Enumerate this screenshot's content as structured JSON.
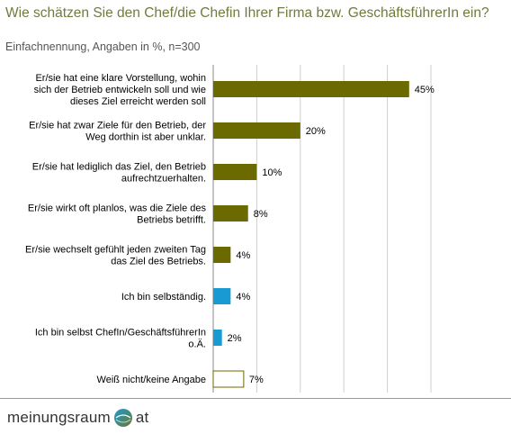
{
  "title": "Wie schätzen Sie den Chef/die Chefin Ihrer Firma bzw. GeschäftsführerIn ein?",
  "subtitle": "Einfachnennung, Angaben in %, n=300",
  "logo": {
    "left": "meinungsraum",
    "right": "at"
  },
  "colors": {
    "olive": "#6b6a00",
    "blue": "#1a9ad3",
    "white": "#ffffff",
    "title": "#707b3c"
  },
  "chart_data": {
    "type": "bar",
    "orientation": "horizontal",
    "xlim": [
      0,
      50
    ],
    "grid": true,
    "categories": [
      [
        "Er/sie hat eine klare Vorstellung, wohin",
        "sich der Betrieb entwickeln soll und wie",
        "dieses Ziel erreicht werden soll"
      ],
      [
        "Er/sie hat zwar Ziele für den Betrieb, der",
        "Weg dorthin ist aber unklar."
      ],
      [
        "Er/sie hat lediglich das Ziel, den Betrieb",
        "aufrechtzuerhalten."
      ],
      [
        "Er/sie wirkt oft planlos, was die Ziele des",
        "Betriebs betrifft."
      ],
      [
        "Er/sie wechselt gefühlt jeden zweiten Tag",
        "das Ziel des Betriebs."
      ],
      [
        "Ich bin selbständig."
      ],
      [
        "Ich bin selbst ChefIn/GeschäftsführerIn",
        "o.Ä."
      ],
      [
        "Weiß nicht/keine Angabe"
      ]
    ],
    "values": [
      45,
      20,
      10,
      8,
      4,
      4,
      2,
      7
    ],
    "value_labels": [
      "45%",
      "20%",
      "10%",
      "8%",
      "4%",
      "4%",
      "2%",
      "7%"
    ],
    "bar_colors": [
      "olive",
      "olive",
      "olive",
      "olive",
      "olive",
      "blue",
      "blue",
      "white"
    ]
  }
}
